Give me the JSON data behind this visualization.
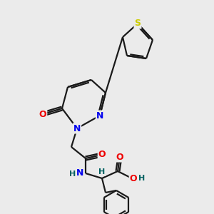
{
  "background_color": "#ebebeb",
  "bond_color": "#1a1a1a",
  "atom_colors": {
    "N": "#0000ee",
    "O": "#ee0000",
    "S": "#cccc00",
    "H": "#006060",
    "C": "#1a1a1a"
  },
  "figsize": [
    3.0,
    3.0
  ],
  "dpi": 100,
  "lw": 1.6
}
